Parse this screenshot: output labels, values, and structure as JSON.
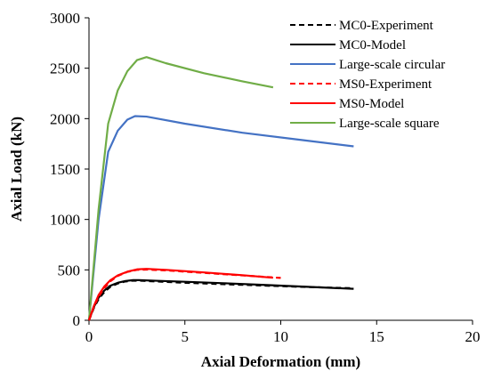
{
  "chart_data": {
    "type": "line",
    "title": "",
    "xlabel": "Axial Deformation (mm)",
    "ylabel": "Axial Load (kN)",
    "xlim": [
      0,
      20
    ],
    "ylim": [
      0,
      3000
    ],
    "xticks": [
      0,
      5,
      10,
      15,
      20
    ],
    "yticks": [
      0,
      500,
      1000,
      1500,
      2000,
      2500,
      3000
    ],
    "grid": false,
    "legend_position": "top-right",
    "series": [
      {
        "name": "MC0-Experiment",
        "color": "#000000",
        "dash": "dashed",
        "x": [
          0,
          0.25,
          0.5,
          0.8,
          1.1,
          1.5,
          1.9,
          2.3,
          2.7,
          3.5,
          5,
          7,
          9,
          11,
          13.8
        ],
        "y": [
          0,
          120,
          210,
          280,
          330,
          365,
          385,
          393,
          392,
          385,
          372,
          358,
          345,
          332,
          318
        ]
      },
      {
        "name": "MC0-Model",
        "color": "#000000",
        "dash": "solid",
        "x": [
          0,
          0.25,
          0.5,
          0.8,
          1.1,
          1.5,
          1.9,
          2.3,
          2.6,
          3.5,
          5,
          7,
          9,
          11,
          13.8
        ],
        "y": [
          0,
          130,
          225,
          295,
          342,
          372,
          390,
          398,
          398,
          392,
          382,
          368,
          352,
          335,
          312
        ]
      },
      {
        "name": "Large-scale circular",
        "color": "#4472C4",
        "dash": "solid",
        "x": [
          0,
          0.5,
          1.0,
          1.5,
          2.0,
          2.4,
          3,
          5,
          8,
          11,
          13.8
        ],
        "y": [
          0,
          1000,
          1670,
          1880,
          1990,
          2025,
          2020,
          1950,
          1860,
          1790,
          1725
        ]
      },
      {
        "name": "MS0-Experiment",
        "color": "#FF0000",
        "dash": "dashed",
        "x": [
          0,
          0.25,
          0.5,
          0.8,
          1.1,
          1.5,
          2.0,
          2.5,
          3.0,
          4,
          6,
          8,
          10
        ],
        "y": [
          0,
          130,
          235,
          320,
          385,
          440,
          480,
          500,
          503,
          495,
          470,
          445,
          420
        ]
      },
      {
        "name": "MS0-Model",
        "color": "#FF0000",
        "dash": "solid",
        "x": [
          0,
          0.25,
          0.5,
          0.8,
          1.1,
          1.5,
          2.0,
          2.5,
          3.0,
          4,
          6,
          8,
          9.6
        ],
        "y": [
          0,
          140,
          250,
          335,
          395,
          445,
          482,
          505,
          510,
          500,
          475,
          447,
          422
        ]
      },
      {
        "name": "Large-scale square",
        "color": "#70AD47",
        "dash": "solid",
        "x": [
          0,
          0.5,
          1.0,
          1.5,
          2.0,
          2.5,
          3.0,
          4,
          6,
          8,
          9.6
        ],
        "y": [
          0,
          1100,
          1950,
          2280,
          2470,
          2580,
          2610,
          2550,
          2450,
          2370,
          2310
        ]
      }
    ]
  }
}
